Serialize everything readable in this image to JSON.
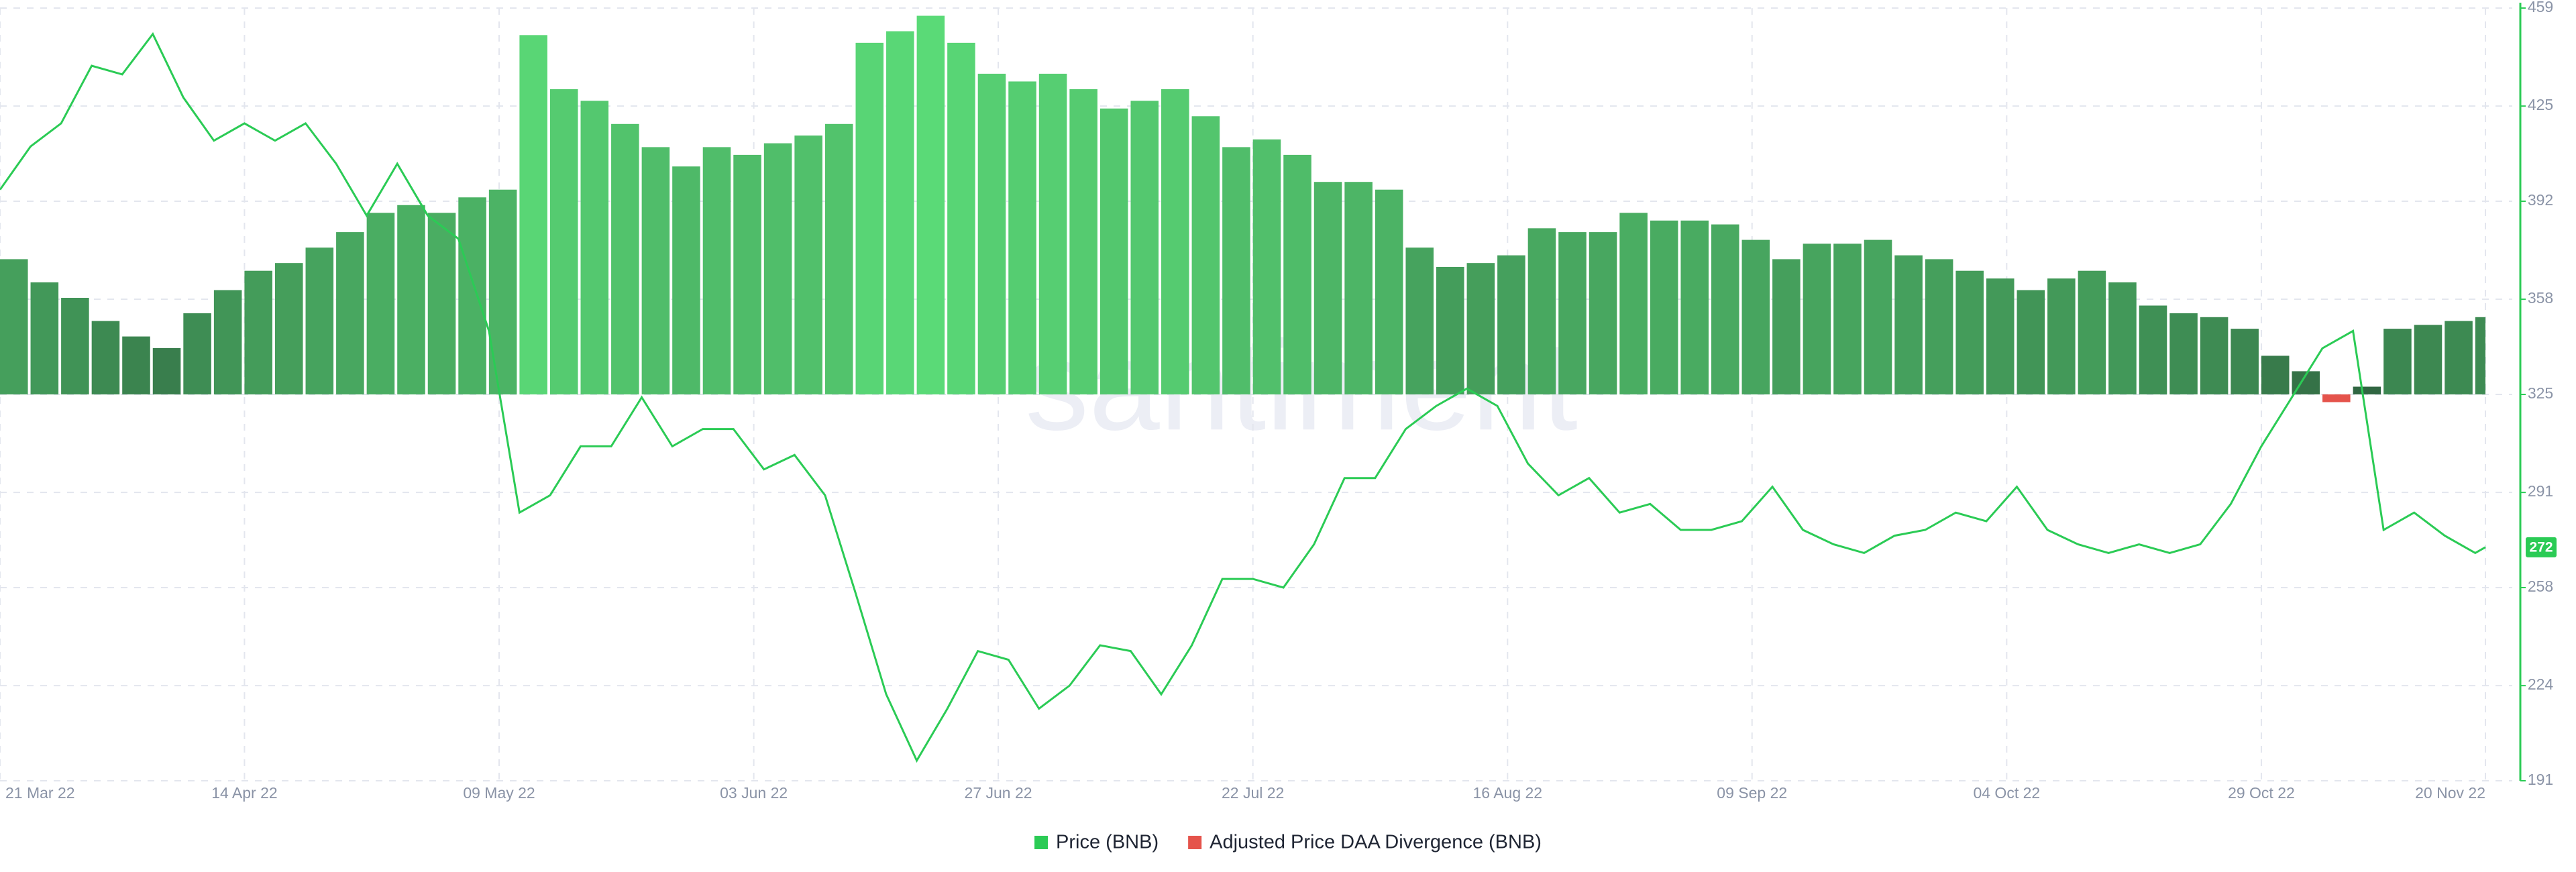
{
  "chart_data": {
    "type": "line-bar",
    "watermark": "santiment",
    "x": [
      "2022-03-21",
      "2022-03-24",
      "2022-03-27",
      "2022-03-30",
      "2022-04-02",
      "2022-04-05",
      "2022-04-08",
      "2022-04-11",
      "2022-04-14",
      "2022-04-17",
      "2022-04-20",
      "2022-04-23",
      "2022-04-26",
      "2022-04-29",
      "2022-05-02",
      "2022-05-05",
      "2022-05-08",
      "2022-05-11",
      "2022-05-14",
      "2022-05-17",
      "2022-05-20",
      "2022-05-23",
      "2022-05-26",
      "2022-05-29",
      "2022-06-01",
      "2022-06-04",
      "2022-06-07",
      "2022-06-10",
      "2022-06-13",
      "2022-06-16",
      "2022-06-19",
      "2022-06-22",
      "2022-06-25",
      "2022-06-28",
      "2022-07-01",
      "2022-07-04",
      "2022-07-07",
      "2022-07-10",
      "2022-07-13",
      "2022-07-16",
      "2022-07-19",
      "2022-07-22",
      "2022-07-25",
      "2022-07-28",
      "2022-07-31",
      "2022-08-03",
      "2022-08-06",
      "2022-08-09",
      "2022-08-12",
      "2022-08-15",
      "2022-08-18",
      "2022-08-21",
      "2022-08-24",
      "2022-08-27",
      "2022-08-30",
      "2022-09-02",
      "2022-09-05",
      "2022-09-08",
      "2022-09-11",
      "2022-09-14",
      "2022-09-17",
      "2022-09-20",
      "2022-09-23",
      "2022-09-26",
      "2022-09-29",
      "2022-10-02",
      "2022-10-05",
      "2022-10-08",
      "2022-10-11",
      "2022-10-14",
      "2022-10-17",
      "2022-10-20",
      "2022-10-23",
      "2022-10-26",
      "2022-10-29",
      "2022-11-01",
      "2022-11-04",
      "2022-11-07",
      "2022-11-10",
      "2022-11-13",
      "2022-11-16",
      "2022-11-19",
      "2022-11-20"
    ],
    "series": [
      {
        "name": "Price (BNB)",
        "color": "#2bcb55",
        "values": [
          396,
          411,
          419,
          439,
          436,
          450,
          428,
          413,
          419,
          413,
          419,
          405,
          387,
          405,
          387,
          379,
          347,
          284,
          290,
          307,
          307,
          324,
          307,
          313,
          313,
          299,
          304,
          290,
          256,
          221,
          198,
          216,
          236,
          233,
          216,
          224,
          238,
          236,
          221,
          238,
          261,
          261,
          258,
          273,
          296,
          296,
          313,
          321,
          327,
          321,
          301,
          290,
          296,
          284,
          287,
          278,
          278,
          281,
          293,
          278,
          273,
          270,
          276,
          278,
          284,
          281,
          293,
          278,
          273,
          270,
          273,
          270,
          273,
          287,
          307,
          324,
          341,
          347,
          278,
          284,
          276,
          270,
          272
        ]
      },
      {
        "name": "Adjusted Price DAA Divergence (BNB)",
        "color": "#e5534b",
        "positive_color": "#5bdc78",
        "axis": "y2",
        "values": [
          35,
          29,
          25,
          19,
          15,
          12,
          21,
          27,
          32,
          34,
          38,
          42,
          47,
          49,
          47,
          51,
          53,
          93,
          79,
          76,
          70,
          64,
          59,
          64,
          62,
          65,
          67,
          70,
          91,
          94,
          98,
          91,
          83,
          81,
          83,
          79,
          74,
          76,
          79,
          72,
          64,
          66,
          62,
          55,
          55,
          53,
          38,
          33,
          34,
          36,
          43,
          42,
          42,
          47,
          45,
          45,
          44,
          40,
          35,
          39,
          39,
          40,
          36,
          35,
          32,
          30,
          27,
          30,
          32,
          29,
          23,
          21,
          20,
          17,
          10,
          6,
          -2,
          2,
          17,
          18,
          19,
          20,
          20
        ]
      }
    ],
    "xlim": [
      "2022-03-21",
      "2022-11-20"
    ],
    "xticks": [
      {
        "value": "2022-03-21",
        "label": "21 Mar 22"
      },
      {
        "value": "2022-04-14",
        "label": "14 Apr 22"
      },
      {
        "value": "2022-05-09",
        "label": "09 May 22"
      },
      {
        "value": "2022-06-03",
        "label": "03 Jun 22"
      },
      {
        "value": "2022-06-27",
        "label": "27 Jun 22"
      },
      {
        "value": "2022-07-22",
        "label": "22 Jul 22"
      },
      {
        "value": "2022-08-16",
        "label": "16 Aug 22"
      },
      {
        "value": "2022-09-09",
        "label": "09 Sep 22"
      },
      {
        "value": "2022-10-04",
        "label": "04 Oct 22"
      },
      {
        "value": "2022-10-29",
        "label": "29 Oct 22"
      },
      {
        "value": "2022-11-20",
        "label": "20 Nov 22"
      }
    ],
    "ylim": [
      191,
      459
    ],
    "yticks": [
      191,
      224,
      258,
      291,
      325,
      358,
      392,
      425,
      459
    ],
    "y2lim": [
      -100,
      100
    ],
    "grid": true,
    "legend": "bottom"
  }
}
